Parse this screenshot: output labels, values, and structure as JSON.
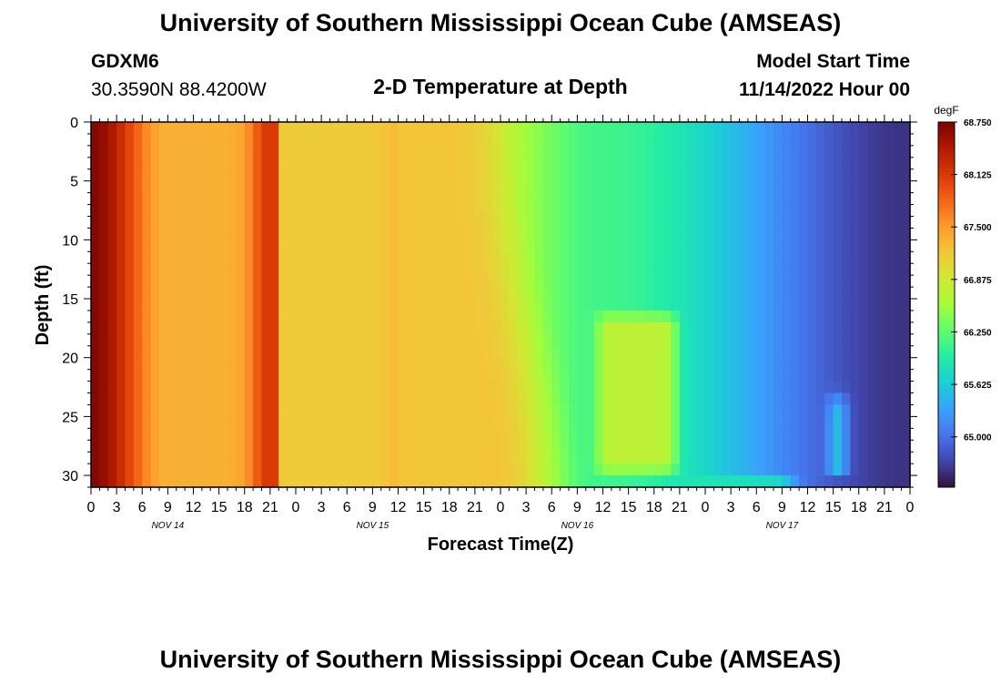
{
  "header": {
    "title": "University of Southern Mississippi Ocean Cube (AMSEAS)",
    "station": "GDXM6",
    "coords": "30.3590N  88.4200W",
    "chart_title": "2-D Temperature at Depth",
    "model_start_label": "Model Start Time",
    "model_start_value": "11/14/2022 Hour 00"
  },
  "footer": {
    "title": "University of Southern Mississippi Ocean Cube (AMSEAS)"
  },
  "colors": {
    "ramp": [
      "#30123b",
      "#4145ab",
      "#4675ed",
      "#39a2fc",
      "#1bcfd4",
      "#24eca6",
      "#61fc6c",
      "#a4fc3b",
      "#d1e834",
      "#f3c63a",
      "#fe9b2d",
      "#f36315",
      "#d93806",
      "#b11901",
      "#7a0402"
    ]
  },
  "chart_data": {
    "type": "heatmap",
    "title": "2-D Temperature at Depth",
    "xlabel": "Forecast Time(Z)",
    "ylabel": "Depth (ft)",
    "x_range_hours": [
      0,
      96
    ],
    "x_tick_step_hours": 3,
    "x_tick_labels": [
      "0",
      "3",
      "6",
      "9",
      "12",
      "15",
      "18",
      "21",
      "0",
      "3",
      "6",
      "9",
      "12",
      "15",
      "18",
      "21",
      "0",
      "3",
      "6",
      "9",
      "12",
      "15",
      "18",
      "21",
      "0",
      "3",
      "6",
      "9",
      "12",
      "15",
      "18",
      "21",
      "0"
    ],
    "day_labels": [
      "NOV 14",
      "NOV 15",
      "NOV 16",
      "NOV 17"
    ],
    "ylim": [
      0,
      31
    ],
    "y_ticks": [
      0,
      5,
      10,
      15,
      20,
      25,
      30
    ],
    "y_inverted": true,
    "colorbar": {
      "unit": "degF",
      "min": 64.4,
      "max": 68.75,
      "tick_values": [
        68.75,
        68.125,
        67.5,
        66.875,
        66.25,
        65.625,
        65.0
      ],
      "tick_labels": [
        "68.750",
        "68.125",
        "67.500",
        "66.875",
        "66.250",
        "65.625",
        "65.000"
      ]
    }
  }
}
